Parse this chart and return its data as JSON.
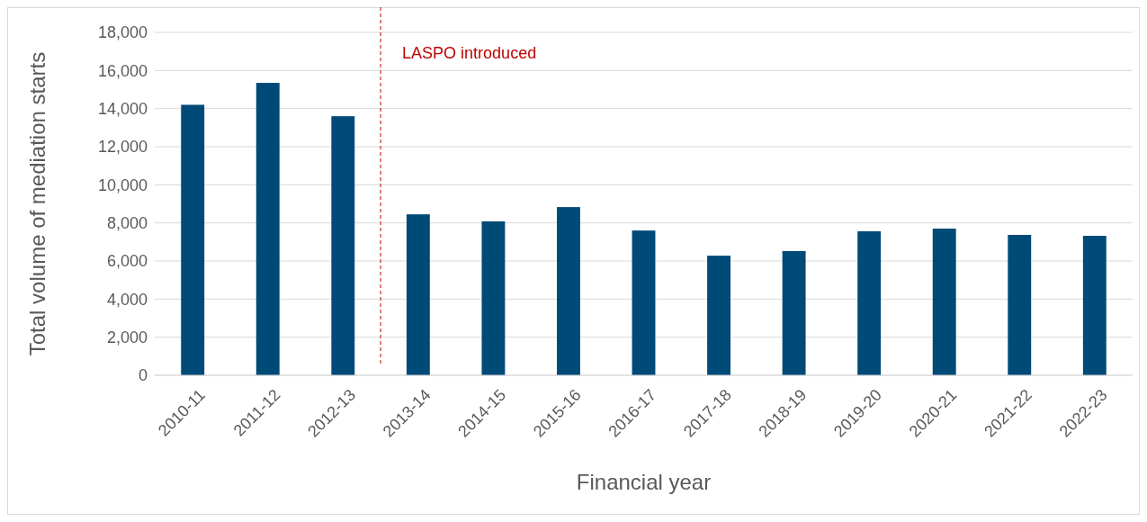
{
  "chart_data": {
    "type": "bar",
    "xlabel": "Financial year",
    "ylabel": "Total volume of mediation starts",
    "categories": [
      "2010-11",
      "2011-12",
      "2012-13",
      "2013-14",
      "2014-15",
      "2015-16",
      "2016-17",
      "2017-18",
      "2018-19",
      "2019-20",
      "2020-21",
      "2021-22",
      "2022-23"
    ],
    "values": [
      14200,
      15350,
      13600,
      8450,
      8080,
      8830,
      7600,
      6280,
      6520,
      7560,
      7700,
      7370,
      7320
    ],
    "color": "#004a78",
    "ylim": [
      0,
      18000
    ],
    "yticks": [
      {
        "value": 0,
        "label": "0"
      },
      {
        "value": 2000,
        "label": "2,000"
      },
      {
        "value": 4000,
        "label": "4,000"
      },
      {
        "value": 6000,
        "label": "6,000"
      },
      {
        "value": 8000,
        "label": "8,000"
      },
      {
        "value": 10000,
        "label": "10,000"
      },
      {
        "value": 12000,
        "label": "12,000"
      },
      {
        "value": 14000,
        "label": "14,000"
      },
      {
        "value": 16000,
        "label": "16,000"
      },
      {
        "value": 18000,
        "label": "18,000"
      }
    ],
    "grid": "y",
    "ref_lines": [
      {
        "axis": "x",
        "value": "2013-14",
        "label": "LASPO introduced",
        "color": "#c00000",
        "line_style": "dashed"
      }
    ]
  }
}
